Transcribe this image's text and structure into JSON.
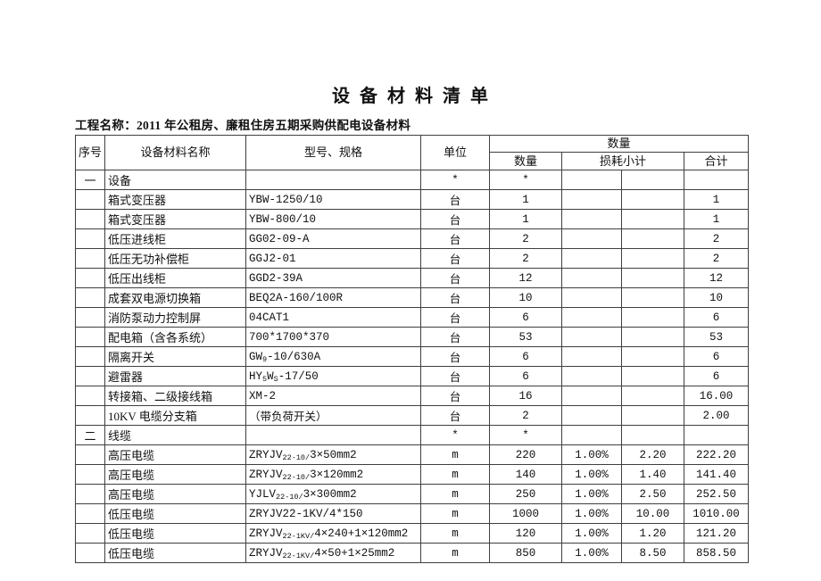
{
  "document": {
    "title": "设 备 材 料 清 单",
    "project_name": "工程名称：2011 年公租房、廉租住房五期采购供配电设备材料"
  },
  "table": {
    "header": {
      "seq": "序号",
      "name": "设备材料名称",
      "model": "型号、规格",
      "unit": "单位",
      "qty_group": "数量",
      "qty": "数量",
      "loss_subtotal": "损耗小计",
      "total": "合计"
    },
    "rows": [
      {
        "seq": "一",
        "name": "设备",
        "model": "",
        "unit": "*",
        "qty": "*",
        "loss_pct": "",
        "loss_val": "",
        "total": ""
      },
      {
        "seq": "",
        "name": "箱式变压器",
        "model": "YBW-1250/10",
        "unit": "台",
        "qty": "1",
        "loss_pct": "",
        "loss_val": "",
        "total": "1"
      },
      {
        "seq": "",
        "name": "箱式变压器",
        "model": "YBW-800/10",
        "unit": "台",
        "qty": "1",
        "loss_pct": "",
        "loss_val": "",
        "total": "1"
      },
      {
        "seq": "",
        "name": "低压进线柜",
        "model": "GG02-09-A",
        "unit": "台",
        "qty": "2",
        "loss_pct": "",
        "loss_val": "",
        "total": "2"
      },
      {
        "seq": "",
        "name": "低压无功补偿柜",
        "model": "GGJ2-01",
        "unit": "台",
        "qty": "2",
        "loss_pct": "",
        "loss_val": "",
        "total": "2"
      },
      {
        "seq": "",
        "name": "低压出线柜",
        "model": "GGD2-39A",
        "unit": "台",
        "qty": "12",
        "loss_pct": "",
        "loss_val": "",
        "total": "12"
      },
      {
        "seq": "",
        "name": "成套双电源切换箱",
        "model": "BEQ2A-160/100R",
        "unit": "台",
        "qty": "10",
        "loss_pct": "",
        "loss_val": "",
        "total": "10"
      },
      {
        "seq": "",
        "name": "消防泵动力控制屏",
        "model": "04CAT1",
        "unit": "台",
        "qty": "6",
        "loss_pct": "",
        "loss_val": "",
        "total": "6"
      },
      {
        "seq": "",
        "name": "配电箱（含各系统）",
        "model": "700*1700*370",
        "unit": "台",
        "qty": "53",
        "loss_pct": "",
        "loss_val": "",
        "total": "53"
      },
      {
        "seq": "",
        "name": "隔离开关",
        "model": "GW_{9}-10/630A",
        "unit": "台",
        "qty": "6",
        "loss_pct": "",
        "loss_val": "",
        "total": "6"
      },
      {
        "seq": "",
        "name": "避雷器",
        "model": "HY_{5}W_{S}-17/50",
        "unit": "台",
        "qty": "6",
        "loss_pct": "",
        "loss_val": "",
        "total": "6"
      },
      {
        "seq": "",
        "name": "转接箱、二级接线箱",
        "model": "XM-2",
        "unit": "台",
        "qty": "16",
        "loss_pct": "",
        "loss_val": "",
        "total": "16.00"
      },
      {
        "seq": "",
        "name": "10KV 电缆分支箱",
        "model": "（带负荷开关）",
        "unit": "台",
        "qty": "2",
        "loss_pct": "",
        "loss_val": "",
        "total": "2.00"
      },
      {
        "seq": "二",
        "name": "线缆",
        "model": "",
        "unit": "*",
        "qty": "*",
        "loss_pct": "",
        "loss_val": "",
        "total": ""
      },
      {
        "seq": "",
        "name": "高压电缆",
        "model": "ZRYJV_{22-10/}3×50mm2",
        "unit": "m",
        "qty": "220",
        "loss_pct": "1.00%",
        "loss_val": "2.20",
        "total": "222.20"
      },
      {
        "seq": "",
        "name": "高压电缆",
        "model": "ZRYJV_{22-10/}3×120mm2",
        "unit": "m",
        "qty": "140",
        "loss_pct": "1.00%",
        "loss_val": "1.40",
        "total": "141.40"
      },
      {
        "seq": "",
        "name": "高压电缆",
        "model": "YJLV_{22-10/}3×300mm2",
        "unit": "m",
        "qty": "250",
        "loss_pct": "1.00%",
        "loss_val": "2.50",
        "total": "252.50"
      },
      {
        "seq": "",
        "name": "低压电缆",
        "model": "ZRYJV22-1KV/4*150",
        "unit": "m",
        "qty": "1000",
        "loss_pct": "1.00%",
        "loss_val": "10.00",
        "total": "1010.00"
      },
      {
        "seq": "",
        "name": "低压电缆",
        "model": "ZRYJV_{22-1KV/}4×240+1×120mm2",
        "unit": "m",
        "qty": "120",
        "loss_pct": "1.00%",
        "loss_val": "1.20",
        "total": "121.20"
      },
      {
        "seq": "",
        "name": "低压电缆",
        "model": "ZRYJV_{22-1KV/}4×50+1×25mm2",
        "unit": "m",
        "qty": "850",
        "loss_pct": "1.00%",
        "loss_val": "8.50",
        "total": "858.50"
      }
    ]
  }
}
